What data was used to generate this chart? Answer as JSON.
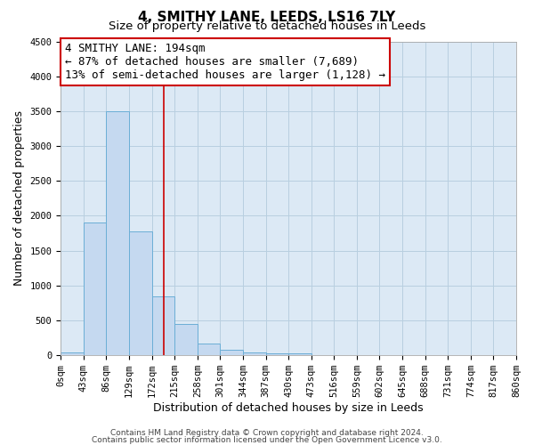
{
  "title": "4, SMITHY LANE, LEEDS, LS16 7LY",
  "subtitle": "Size of property relative to detached houses in Leeds",
  "xlabel": "Distribution of detached houses by size in Leeds",
  "ylabel": "Number of detached properties",
  "bin_edges": [
    0,
    43,
    86,
    129,
    172,
    215,
    258,
    301,
    344,
    387,
    430,
    473,
    516,
    559,
    602,
    645,
    688,
    731,
    774,
    817,
    860
  ],
  "bar_values": [
    40,
    1900,
    3500,
    1775,
    850,
    450,
    175,
    80,
    40,
    30,
    25,
    0,
    0,
    0,
    0,
    0,
    0,
    0,
    0,
    0
  ],
  "bar_color": "#c5d9f0",
  "bar_edgecolor": "#6baed6",
  "property_size": 194,
  "vline_color": "#cc0000",
  "annotation_line1": "4 SMITHY LANE: 194sqm",
  "annotation_line2": "← 87% of detached houses are smaller (7,689)",
  "annotation_line3": "13% of semi-detached houses are larger (1,128) →",
  "annotation_box_edgecolor": "#cc0000",
  "annotation_box_facecolor": "#ffffff",
  "ylim": [
    0,
    4500
  ],
  "yticks": [
    0,
    500,
    1000,
    1500,
    2000,
    2500,
    3000,
    3500,
    4000,
    4500
  ],
  "footer_line1": "Contains HM Land Registry data © Crown copyright and database right 2024.",
  "footer_line2": "Contains public sector information licensed under the Open Government Licence v3.0.",
  "bg_color": "#ffffff",
  "plot_bg_color": "#dce9f5",
  "grid_color": "#b8cfe0",
  "title_fontsize": 11,
  "subtitle_fontsize": 9.5,
  "axis_label_fontsize": 9,
  "tick_fontsize": 7.5,
  "annotation_fontsize": 9,
  "footer_fontsize": 6.5
}
